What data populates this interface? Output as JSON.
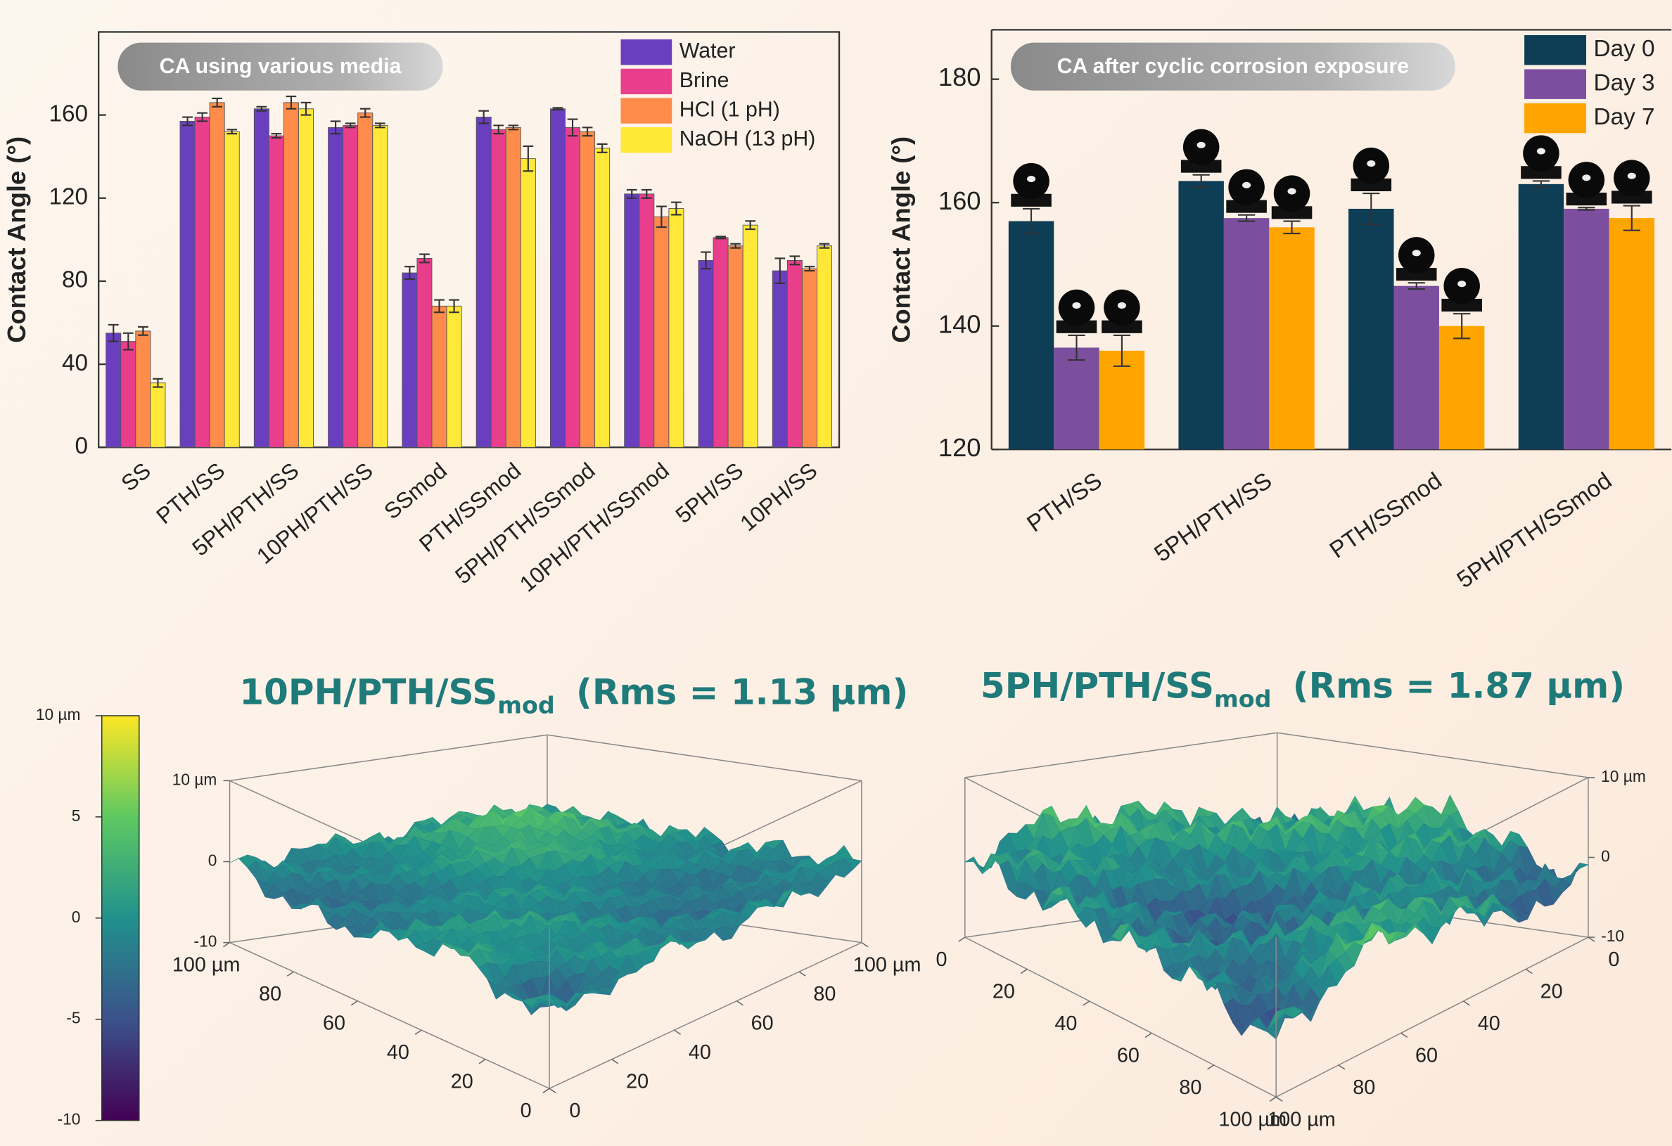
{
  "chart_data": [
    {
      "type": "bar",
      "annotation": "CA using various media",
      "y_label": "Contact Angle (°)",
      "categories": [
        "SS",
        "PTH/SS",
        "5PH/PTH/SS",
        "10PH/PTH/SS",
        "SSmod",
        "PTH/SSmod",
        "5PH/PTH/SSmod",
        "10PH/PTH/SSmod",
        "5PH/SS",
        "10PH/SS"
      ],
      "series": [
        {
          "name": "Water",
          "color": "#6a3fbf",
          "values": [
            55,
            157,
            163,
            154,
            84,
            159,
            163,
            122,
            90,
            85
          ],
          "errors": [
            4,
            2,
            1,
            3,
            3,
            3,
            0.5,
            2,
            4,
            6
          ]
        },
        {
          "name": "Brine",
          "color": "#e83e8c",
          "values": [
            51,
            159,
            150,
            155,
            91,
            153,
            154,
            122,
            101,
            90
          ],
          "errors": [
            4,
            2,
            1,
            1,
            2,
            2,
            4,
            2,
            0.5,
            2
          ]
        },
        {
          "name": "HCl (1 pH)",
          "color": "#ff8c4a",
          "values": [
            56,
            166,
            166,
            161,
            68,
            154,
            152,
            111,
            97,
            86
          ],
          "errors": [
            2,
            2,
            3,
            2,
            3,
            1,
            2,
            5,
            1,
            1
          ]
        },
        {
          "name": "NaOH (13 pH)",
          "color": "#ffe838",
          "values": [
            31,
            152,
            163,
            155,
            68,
            139,
            144,
            115,
            107,
            97
          ],
          "errors": [
            2,
            1,
            3,
            1,
            3,
            6,
            2,
            3,
            2,
            1
          ]
        }
      ],
      "ylim": [
        0,
        200
      ],
      "yticks": [
        0,
        40,
        80,
        120,
        160
      ]
    },
    {
      "type": "bar",
      "annotation": "CA after cyclic corrosion exposure",
      "y_label": "Contact Angle (°)",
      "categories": [
        "PTH/SS",
        "5PH/PTH/SS",
        "PTH/SSmod",
        "5PH/PTH/SSmod"
      ],
      "series": [
        {
          "name": "Day 0",
          "color": "#0e3d56",
          "values": [
            157,
            163.5,
            159,
            163
          ],
          "errors": [
            2,
            1,
            2.5,
            0.5
          ]
        },
        {
          "name": "Day 3",
          "color": "#7b4f9e",
          "values": [
            136.5,
            157.5,
            146.5,
            159
          ],
          "errors": [
            2,
            0.5,
            0.5,
            0.2
          ]
        },
        {
          "name": "Day 7",
          "color": "#ffa500",
          "values": [
            136,
            156,
            140,
            157.5
          ],
          "errors": [
            2.5,
            1,
            2,
            2
          ]
        }
      ],
      "ylim": [
        120,
        188
      ],
      "yticks": [
        120,
        140,
        160,
        180
      ]
    },
    {
      "type": "colorbar",
      "zlim": [
        -10,
        10
      ],
      "zticks": [
        {
          "value": 10,
          "label": "10 µm"
        },
        5,
        0,
        -5,
        -10
      ]
    },
    {
      "type": "surface",
      "title": "10PH/PTH/SS",
      "title_subscript": "mod",
      "subtitle": "(Rms = 1.13 µm)",
      "xlim": [
        0,
        100
      ],
      "xticks": [
        {
          "value": 100,
          "label": "100 µm"
        },
        80,
        60,
        40,
        20,
        0
      ],
      "ylim": [
        0,
        100
      ],
      "yticks": [
        0,
        20,
        40,
        60,
        80,
        {
          "value": 100,
          "label": "100 µm"
        }
      ],
      "zlim": [
        -10,
        10
      ],
      "zticks": [
        {
          "value": 10,
          "label": "10 µm"
        },
        0,
        -10
      ]
    },
    {
      "type": "surface",
      "title": "5PH/PTH/SS",
      "title_subscript": "mod",
      "subtitle": "(Rms = 1.87 µm)",
      "xlim": [
        100,
        0
      ],
      "xticks": [
        0,
        20,
        40,
        60,
        80,
        {
          "value": 100,
          "label": "100 µm"
        }
      ],
      "ylim": [
        100,
        0
      ],
      "yticks": [
        {
          "value": 100,
          "label": "100 µm"
        },
        80,
        60,
        40,
        20,
        0
      ],
      "zlim": [
        -10,
        10
      ],
      "zticks": [
        {
          "value": 10,
          "label": "10 µm"
        },
        0,
        -10
      ]
    }
  ]
}
